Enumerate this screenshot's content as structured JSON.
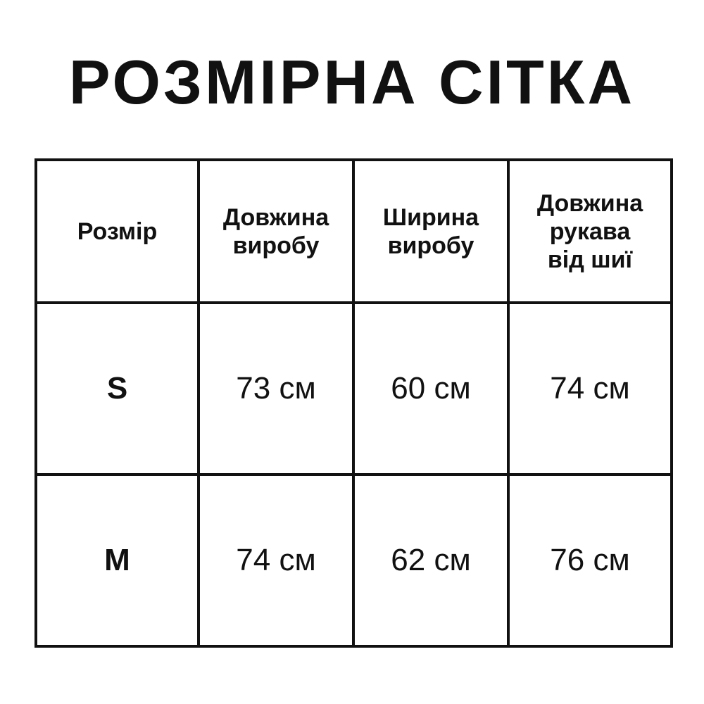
{
  "title": "РОЗМІРНА СІТКА",
  "table": {
    "headers": [
      [
        "Розмір"
      ],
      [
        "Довжина",
        "виробу"
      ],
      [
        "Ширина",
        "виробу"
      ],
      [
        "Довжина",
        "рукава",
        "від шиї"
      ]
    ],
    "rows": [
      [
        "S",
        "73 см",
        "60 см",
        "74 см"
      ],
      [
        "M",
        "74 см",
        "62 см",
        "76 см"
      ]
    ]
  }
}
